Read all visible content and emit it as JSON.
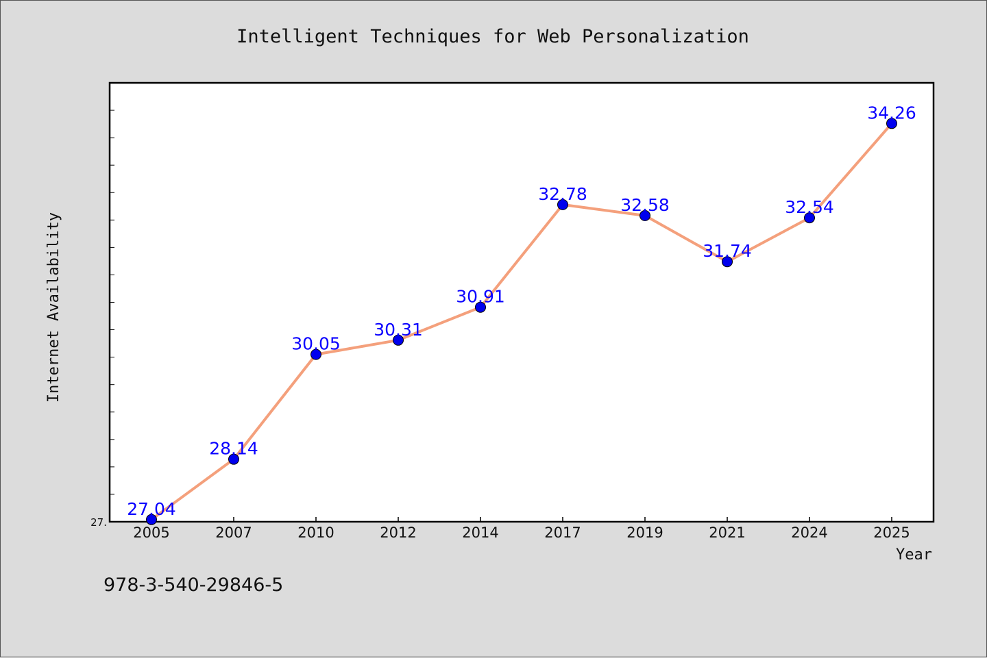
{
  "chart_data": {
    "type": "line",
    "title": "Intelligent Techniques for Web Personalization",
    "xlabel": "Year",
    "ylabel": "Internet Availability",
    "categories": [
      "2005",
      "2007",
      "2010",
      "2012",
      "2014",
      "2017",
      "2019",
      "2021",
      "2024",
      "2025"
    ],
    "values": [
      27.04,
      28.14,
      30.05,
      30.31,
      30.91,
      32.78,
      32.58,
      31.74,
      32.54,
      34.26
    ],
    "data_labels": [
      "27.04",
      "28.14",
      "30.05",
      "30.31",
      "30.91",
      "32.78",
      "32.58",
      "31.74",
      "32.54",
      "34.26"
    ],
    "ytick_labels": [
      "27."
    ],
    "ylim": [
      27.0,
      35.0
    ],
    "grid": false,
    "line_color": "#f4a07c",
    "marker_color": "#0000ee",
    "label_color": "#0a00ff"
  },
  "footnote": "978-3-540-29846-5"
}
